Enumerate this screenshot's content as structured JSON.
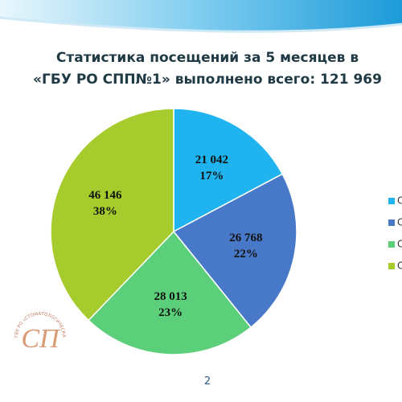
{
  "chart_data": {
    "type": "pie",
    "title": [
      "Статистика посещений за 5 месяцев в",
      "«ГБУ РО СПП№1» выполнено всего: 121 969"
    ],
    "categories": [
      "С",
      "С",
      "С",
      "С"
    ],
    "values": [
      21042,
      26768,
      28013,
      46146
    ],
    "value_labels": [
      "21 042",
      "26 768",
      "28 013",
      "46 146"
    ],
    "percents": [
      17,
      22,
      23,
      38
    ],
    "percent_labels": [
      "17%",
      "22%",
      "23%",
      "38%"
    ],
    "colors": [
      "#1fb4ef",
      "#4879c8",
      "#5ccf7a",
      "#a6cb2c"
    ],
    "legend": "right"
  },
  "page_number": "2",
  "logo_text": "ГБУ РО «СТОМАТОЛОГИЧЕСКАЯ ПОЛИКЛИНИКА №1»"
}
